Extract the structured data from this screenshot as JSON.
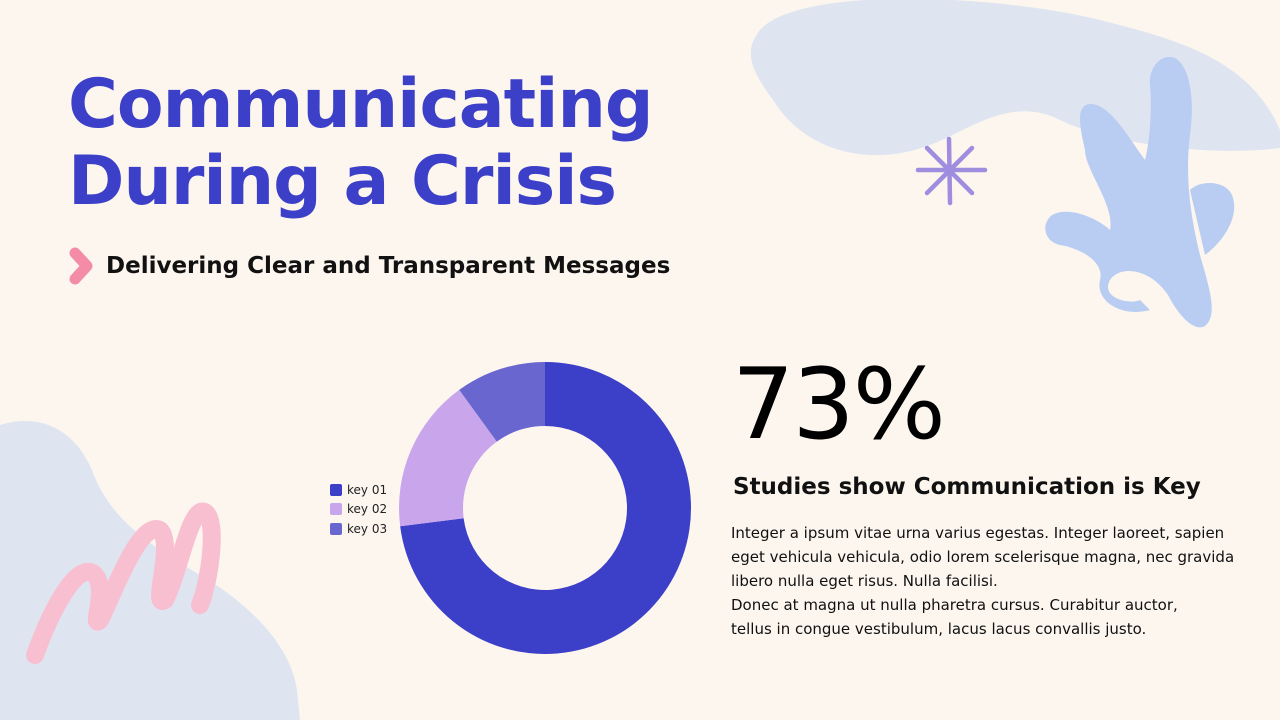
{
  "slide": {
    "title_line1": "Communicating",
    "title_line2": "During a Crisis",
    "subtitle": "Delivering Clear and Transparent Messages",
    "stat_value": "73%",
    "stat_headline": "Studies show Communication is Key",
    "body_lines": [
      "Integer a ipsum vitae urna varius egestas. Integer laoreet, sapien",
      "eget vehicula vehicula, odio lorem scelerisque magna, nec gravida",
      "libero nulla eget risus. Nulla facilisi.",
      "Donec at magna ut nulla pharetra cursus. Curabitur auctor,",
      "tellus in congue vestibulum, lacus lacus convallis justo."
    ]
  },
  "colors": {
    "accent": "#3c3fc8",
    "background": "#fcf6ef",
    "arrow": "#f48ca8",
    "blob_blue": "#dfe5f0",
    "leaf": "#b9cdf3",
    "star": "#9f8ee0",
    "pink_scribble": "#f8bfd0"
  },
  "icons": [
    "chevron-right-icon",
    "sparkle-icon",
    "leaf-icon",
    "scribble-icon"
  ],
  "chart_data": {
    "type": "pie",
    "style": "donut",
    "categories": [
      "key 01",
      "key 02",
      "key 03"
    ],
    "values": [
      73,
      17,
      10
    ],
    "colors": [
      "#3c3fc8",
      "#c9a6ec",
      "#6967cf"
    ],
    "legend_position": "left"
  }
}
